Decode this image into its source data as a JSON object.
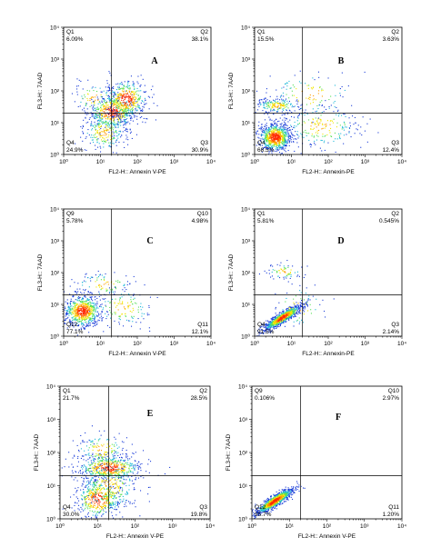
{
  "chart_data": [
    {
      "type": "scatter",
      "panel_label": "A",
      "xlabel": "FL2-H:: Annexin V-PE",
      "ylabel": "FL3-H:: 7AAD",
      "xlim": [
        1,
        10000
      ],
      "ylim": [
        1,
        10000
      ],
      "xscale": "log",
      "yscale": "log",
      "x_tick_labels": [
        "10⁰",
        "10¹",
        "10²",
        "10³",
        "10⁴"
      ],
      "y_tick_labels": [
        "10⁰",
        "10¹",
        "10²",
        "10³",
        "10⁴"
      ],
      "gate": {
        "x": 20,
        "y": 20
      },
      "quadrants": [
        {
          "name": "Q1",
          "value": "6.09%"
        },
        {
          "name": "Q2",
          "value": "38.1%"
        },
        {
          "name": "Q3",
          "value": "30.9%"
        },
        {
          "name": "Q4",
          "value": "24.9%"
        }
      ],
      "populations": [
        {
          "cx": 1.3,
          "cy": 1.35,
          "sx": 0.32,
          "sy": 0.28,
          "n": 520
        },
        {
          "cx": 1.7,
          "cy": 1.75,
          "sx": 0.28,
          "sy": 0.3,
          "n": 420
        },
        {
          "cx": 1.1,
          "cy": 0.7,
          "sx": 0.3,
          "sy": 0.3,
          "n": 240
        },
        {
          "cx": 0.8,
          "cy": 1.8,
          "sx": 0.3,
          "sy": 0.25,
          "n": 80
        }
      ]
    },
    {
      "type": "scatter",
      "panel_label": "B",
      "xlabel": "FL2-H:: Annexin-PE",
      "ylabel": "FL3-H:: 7AAD",
      "xlim": [
        1,
        10000
      ],
      "ylim": [
        1,
        10000
      ],
      "xscale": "log",
      "yscale": "log",
      "x_tick_labels": [
        "10⁰",
        "10¹",
        "10²",
        "10³",
        "10⁴"
      ],
      "y_tick_labels": [
        "10⁰",
        "10¹",
        "10²",
        "10³",
        "10⁴"
      ],
      "gate": {
        "x": 20,
        "y": 20
      },
      "quadrants": [
        {
          "name": "Q1",
          "value": "15.5%"
        },
        {
          "name": "Q2",
          "value": "3.63%"
        },
        {
          "name": "Q3",
          "value": "12.4%"
        },
        {
          "name": "Q4",
          "value": "68.5%"
        }
      ],
      "populations": [
        {
          "cx": 0.55,
          "cy": 0.55,
          "sx": 0.22,
          "sy": 0.22,
          "n": 780
        },
        {
          "cx": 0.6,
          "cy": 1.55,
          "sx": 0.3,
          "sy": 0.12,
          "n": 180
        },
        {
          "cx": 1.8,
          "cy": 0.9,
          "sx": 0.55,
          "sy": 0.35,
          "n": 220
        },
        {
          "cx": 1.5,
          "cy": 1.9,
          "sx": 0.6,
          "sy": 0.35,
          "n": 120
        }
      ]
    },
    {
      "type": "scatter",
      "panel_label": "C",
      "xlabel": "FL2-H:: Annexin V-PE",
      "ylabel": "FL3-H:: 7AAD",
      "xlim": [
        1,
        10000
      ],
      "ylim": [
        1,
        10000
      ],
      "xscale": "log",
      "yscale": "log",
      "x_tick_labels": [
        "10⁰",
        "10¹",
        "10²",
        "10³",
        "10⁴"
      ],
      "y_tick_labels": [
        "10⁰",
        "10¹",
        "10²",
        "10³",
        "10⁴"
      ],
      "gate": {
        "x": 20,
        "y": 20
      },
      "quadrants": [
        {
          "name": "Q9",
          "value": "5.78%"
        },
        {
          "name": "Q10",
          "value": "4.98%"
        },
        {
          "name": "Q11",
          "value": "12.1%"
        },
        {
          "name": "Q12",
          "value": "77.1%"
        }
      ],
      "populations": [
        {
          "cx": 0.5,
          "cy": 0.8,
          "sx": 0.25,
          "sy": 0.25,
          "n": 700
        },
        {
          "cx": 1.1,
          "cy": 1.65,
          "sx": 0.4,
          "sy": 0.2,
          "n": 90
        },
        {
          "cx": 1.6,
          "cy": 0.9,
          "sx": 0.4,
          "sy": 0.3,
          "n": 140
        }
      ]
    },
    {
      "type": "scatter",
      "panel_label": "D",
      "xlabel": "FL2-H:: Annexin-PE",
      "ylabel": "FL3-H:: 7AAD",
      "xlim": [
        1,
        10000
      ],
      "ylim": [
        1,
        10000
      ],
      "xscale": "log",
      "yscale": "log",
      "x_tick_labels": [
        "10⁰",
        "10¹",
        "10²",
        "10³",
        "10⁴"
      ],
      "y_tick_labels": [
        "10⁰",
        "10¹",
        "10²",
        "10³",
        "10⁴"
      ],
      "gate": {
        "x": 20,
        "y": 20
      },
      "quadrants": [
        {
          "name": "Q1",
          "value": "5.81%"
        },
        {
          "name": "Q2",
          "value": "0.545%"
        },
        {
          "name": "Q3",
          "value": "2.14%"
        },
        {
          "name": "Q4",
          "value": "91.5%"
        }
      ],
      "populations": [
        {
          "cx": 0.75,
          "cy": 0.6,
          "sx": 0.25,
          "sy": 0.2,
          "n": 900,
          "diagonal": true
        },
        {
          "cx": 0.8,
          "cy": 2.05,
          "sx": 0.25,
          "sy": 0.12,
          "n": 70
        },
        {
          "cx": 1.2,
          "cy": 0.9,
          "sx": 0.35,
          "sy": 0.35,
          "n": 60
        }
      ]
    },
    {
      "type": "scatter",
      "panel_label": "E",
      "xlabel": "FL2-H:: Annexin V-PE",
      "ylabel": "FL3-H:: 7AAD",
      "xlim": [
        1,
        10000
      ],
      "ylim": [
        1,
        10000
      ],
      "xscale": "log",
      "yscale": "log",
      "x_tick_labels": [
        "10⁰",
        "10¹",
        "10²",
        "10³",
        "10⁴"
      ],
      "y_tick_labels": [
        "10⁰",
        "10¹",
        "10²",
        "10³",
        "10⁴"
      ],
      "gate": {
        "x": 20,
        "y": 20
      },
      "quadrants": [
        {
          "name": "Q1",
          "value": "21.7%"
        },
        {
          "name": "Q2",
          "value": "28.5%"
        },
        {
          "name": "Q3",
          "value": "19.8%"
        },
        {
          "name": "Q4",
          "value": "30.0%"
        }
      ],
      "populations": [
        {
          "cx": 1.0,
          "cy": 0.6,
          "sx": 0.3,
          "sy": 0.3,
          "n": 420
        },
        {
          "cx": 1.3,
          "cy": 1.55,
          "sx": 0.45,
          "sy": 0.18,
          "n": 520
        },
        {
          "cx": 1.3,
          "cy": 1.0,
          "sx": 0.4,
          "sy": 0.4,
          "n": 300
        },
        {
          "cx": 1.1,
          "cy": 2.1,
          "sx": 0.35,
          "sy": 0.25,
          "n": 140
        }
      ]
    },
    {
      "type": "scatter",
      "panel_label": "F",
      "xlabel": "FL2-H:: Annexin V-PE",
      "ylabel": "FL3-H:: 7AAD",
      "xlim": [
        1,
        10000
      ],
      "ylim": [
        1,
        10000
      ],
      "xscale": "log",
      "yscale": "log",
      "x_tick_labels": [
        "10⁰",
        "10¹",
        "10²",
        "10³",
        "10⁴"
      ],
      "y_tick_labels": [
        "10⁰",
        "10¹",
        "10²",
        "10³",
        "10⁴"
      ],
      "gate": {
        "x": 20,
        "y": 20
      },
      "quadrants": [
        {
          "name": "Q9",
          "value": "0.106%"
        },
        {
          "name": "Q10",
          "value": "2.97%"
        },
        {
          "name": "Q11",
          "value": "1.20%"
        },
        {
          "name": "Q12",
          "value": "95.7%"
        }
      ],
      "populations": [
        {
          "cx": 0.6,
          "cy": 0.55,
          "sx": 0.25,
          "sy": 0.2,
          "n": 900,
          "diagonal": true
        }
      ]
    }
  ]
}
